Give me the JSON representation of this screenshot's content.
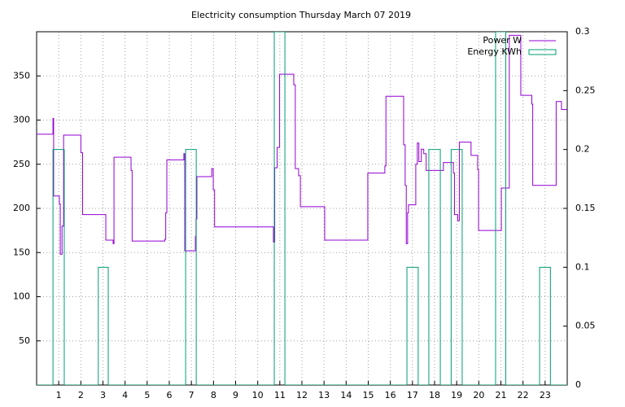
{
  "chart_data": {
    "type": "line",
    "title": "Electricity consumption Thursday March 07 2019",
    "xlim": [
      0,
      24
    ],
    "xticks": [
      1,
      2,
      3,
      4,
      5,
      6,
      7,
      8,
      9,
      10,
      11,
      12,
      13,
      14,
      15,
      16,
      17,
      18,
      19,
      20,
      21,
      22,
      23
    ],
    "ylim": [
      0,
      400
    ],
    "yticks": [
      50,
      100,
      150,
      200,
      250,
      300,
      350
    ],
    "y2lim": [
      0,
      0.3
    ],
    "y2ticks": [
      0,
      0.05,
      0.1,
      0.15,
      0.2,
      0.25,
      0.3
    ],
    "grid": true,
    "legend": "top-right",
    "series": [
      {
        "name": "Power W",
        "color": "#9400d3",
        "x": [
          0,
          0.74,
          0.74,
          0.77,
          0.77,
          1.03,
          1.03,
          1.07,
          1.07,
          1.15,
          1.15,
          1.22,
          1.22,
          2,
          2,
          2.08,
          2.08,
          3.13,
          3.13,
          3.46,
          3.46,
          3.5,
          3.5,
          4.27,
          4.27,
          4.32,
          4.32,
          5.8,
          5.8,
          5.84,
          5.84,
          5.89,
          5.89,
          6.66,
          6.66,
          6.7,
          6.7,
          7.18,
          7.18,
          7.21,
          7.21,
          7.25,
          7.25,
          7.92,
          7.92,
          7.99,
          7.99,
          8.05,
          8.05,
          10.71,
          10.71,
          10.77,
          10.77,
          10.88,
          10.88,
          10.99,
          10.99,
          11.63,
          11.63,
          11.7,
          11.7,
          11.85,
          11.85,
          11.93,
          11.93,
          13.03,
          13.03,
          14.98,
          14.98,
          15.75,
          15.75,
          15.8,
          15.8,
          16.6,
          16.6,
          16.67,
          16.67,
          16.72,
          16.72,
          16.78,
          16.78,
          16.82,
          16.82,
          17.15,
          17.15,
          17.22,
          17.22,
          17.29,
          17.29,
          17.4,
          17.4,
          17.51,
          17.51,
          17.62,
          17.62,
          18.4,
          18.4,
          18.85,
          18.85,
          18.9,
          18.9,
          19.05,
          19.05,
          19.12,
          19.12,
          19.65,
          19.65,
          19.95,
          19.95,
          19.99,
          19.99,
          21.02,
          21.02,
          21.38,
          21.38,
          21.9,
          21.9,
          22.4,
          22.4,
          22.44,
          22.44,
          23.5,
          23.5,
          23.74,
          23.74,
          24
        ],
        "values": [
          284,
          284,
          302,
          302,
          214,
          214,
          205,
          205,
          148,
          148,
          180,
          180,
          283,
          283,
          263,
          263,
          193,
          193,
          164,
          164,
          160,
          160,
          258,
          258,
          243,
          243,
          163,
          163,
          165,
          165,
          195,
          195,
          255,
          255,
          262,
          262,
          152,
          152,
          168,
          168,
          188,
          188,
          236,
          236,
          245,
          245,
          221,
          221,
          179,
          179,
          162,
          162,
          246,
          246,
          269,
          269,
          352,
          352,
          340,
          340,
          245,
          245,
          237,
          237,
          202,
          202,
          164,
          164,
          240,
          240,
          248,
          248,
          327,
          327,
          272,
          272,
          226,
          226,
          160,
          160,
          195,
          195,
          204,
          204,
          250,
          250,
          274,
          274,
          253,
          253,
          267,
          267,
          262,
          262,
          243,
          243,
          252,
          252,
          240,
          240,
          193,
          193,
          186,
          186,
          275,
          275,
          260,
          260,
          244,
          244,
          175,
          175,
          223,
          223,
          396,
          396,
          328,
          328,
          318,
          318,
          226,
          226,
          321,
          321,
          312,
          312
        ]
      },
      {
        "name": "Energy KWh",
        "color": "#009e73",
        "axis": "y2",
        "x": [
          0,
          0.74,
          0.74,
          1.25,
          1.25,
          2.79,
          2.79,
          3.24,
          3.24,
          6.74,
          6.74,
          7.22,
          7.22,
          10.75,
          10.75,
          11.23,
          11.23,
          16.75,
          16.75,
          17.26,
          17.26,
          17.74,
          17.74,
          18.26,
          18.26,
          18.75,
          18.75,
          19.25,
          19.25,
          20.76,
          20.76,
          21.22,
          21.22,
          22.75,
          22.75,
          23.24,
          23.24,
          24
        ],
        "values": [
          0,
          0,
          0.2,
          0.2,
          0,
          0,
          0.1,
          0.1,
          0,
          0,
          0.2,
          0.2,
          0,
          0,
          0.3,
          0.3,
          0,
          0,
          0.1,
          0.1,
          0,
          0,
          0.2,
          0.2,
          0,
          0,
          0.2,
          0.2,
          0,
          0,
          0.3,
          0.3,
          0,
          0,
          0.1,
          0.1,
          0,
          0
        ]
      }
    ]
  }
}
